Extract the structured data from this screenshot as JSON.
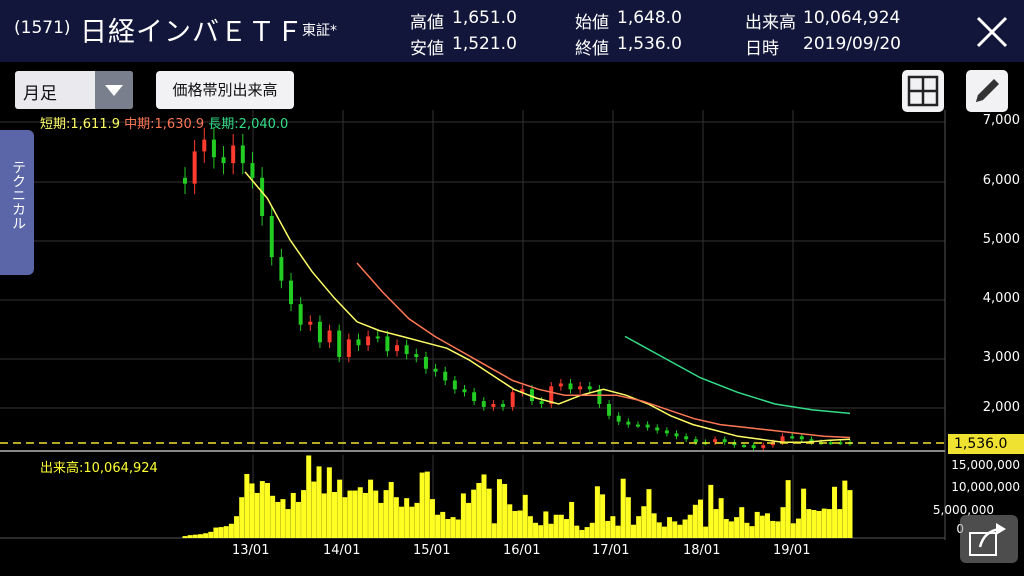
{
  "header": {
    "code": "(1571)",
    "name": "日経インバＥＴＦ",
    "market": "東証*",
    "stats": [
      {
        "label": "高値",
        "value": "1,651.0"
      },
      {
        "label": "始値",
        "value": "1,648.0"
      },
      {
        "label": "出来高",
        "value": "10,064,924"
      },
      {
        "label": "安値",
        "value": "1,521.0"
      },
      {
        "label": "終値",
        "value": "1,536.0"
      },
      {
        "label": "日時",
        "value": "2019/09/20"
      }
    ]
  },
  "toolbar": {
    "period_select": "月足",
    "volume_by_price_button": "価格帯別出来高"
  },
  "side_tab": "テクニカル",
  "legend": {
    "short": "短期:1,611.9",
    "mid": "中期:1,630.9",
    "long": "長期:2,040.0"
  },
  "volume_label": "出来高:10,064,924",
  "current_price_tag": "1,536.0",
  "colors": {
    "up": "#ff3b30",
    "down": "#22cc22",
    "short_ma": "#ffff66",
    "mid_ma": "#ff7755",
    "long_ma": "#33dd88",
    "volume": "#ffff22",
    "header_bg": "#12163a"
  },
  "chart_data": {
    "type": "candlestick",
    "price_axis": {
      "ticks": [
        "7,000",
        "6,000",
        "5,000",
        "4,000",
        "3,000",
        "2,000"
      ],
      "range": [
        1400,
        7000
      ]
    },
    "volume_axis": {
      "ticks": [
        "15,000,000",
        "10,000,000",
        "5,000,000",
        "0"
      ],
      "range": [
        0,
        17000000
      ]
    },
    "x_ticks": [
      "13/01",
      "14/01",
      "15/01",
      "16/01",
      "17/01",
      "18/01",
      "19/01"
    ],
    "candles_close": [
      5950,
      6500,
      6700,
      6400,
      6300,
      6600,
      6300,
      6050,
      5400,
      4700,
      4300,
      3900,
      3550,
      3600,
      3250,
      3450,
      3000,
      3300,
      3200,
      3350,
      3350,
      3100,
      3200,
      3050,
      3000,
      2800,
      2750,
      2600,
      2450,
      2400,
      2250,
      2150,
      2200,
      2150,
      2400,
      2450,
      2250,
      2200,
      2500,
      2550,
      2450,
      2500,
      2450,
      2200,
      2000,
      1900,
      1850,
      1850,
      1800,
      1750,
      1700,
      1650,
      1600,
      1550,
      1550,
      1600,
      1550,
      1500,
      1500,
      1450,
      1500,
      1550,
      1650,
      1650,
      1600,
      1550,
      1550,
      1550,
      1550,
      1536
    ],
    "short_ma": [
      6150,
      5700,
      5000,
      4450,
      4000,
      3600,
      3450,
      3350,
      3250,
      3150,
      2950,
      2700,
      2450,
      2300,
      2200,
      2350,
      2450,
      2350,
      2200,
      2000,
      1850,
      1750,
      1650,
      1600,
      1550,
      1550,
      1580,
      1600
    ],
    "mid_ma": [
      4600,
      4100,
      3650,
      3350,
      3100,
      2850,
      2600,
      2450,
      2350,
      2350,
      2350,
      2250,
      2100,
      1950,
      1850,
      1800,
      1750,
      1700,
      1650,
      1630
    ],
    "long_ma": [
      3350,
      3000,
      2650,
      2400,
      2200,
      2100,
      2040
    ],
    "volume": [
      0.4,
      0.6,
      0.7,
      0.8,
      1.0,
      1.3,
      2.2,
      2.3,
      2.5,
      3.0,
      4.6,
      8.6,
      13.5,
      11.5,
      9.5,
      12.0,
      11.6,
      8.9,
      7.6,
      8.2,
      6.1,
      9.5,
      7.6,
      10.1,
      17.4,
      11.9,
      15.1,
      9.4,
      14.9,
      9.7,
      12.3,
      8.6,
      10.0,
      10.0,
      10.7,
      9.5,
      12.3,
      10.0,
      7.4,
      10.1,
      11.8,
      8.6,
      6.6,
      8.4,
      6.6,
      7.4,
      13.8,
      14.0,
      8.2,
      4.9,
      5.5,
      4.0,
      4.4,
      3.9,
      9.4,
      7.4,
      10.2,
      11.6,
      13.4,
      10.4,
      3.1,
      12.4,
      11.4,
      7.1,
      5.7,
      5.8,
      9.1,
      4.6,
      3.2,
      2.7,
      5.6,
      3.0,
      4.9,
      4.9,
      4.0,
      7.6,
      2.6,
      1.7,
      2.3,
      3.2,
      10.9,
      9.2,
      3.6,
      4.6,
      2.6,
      12.5,
      8.6,
      2.8,
      4.6,
      6.7,
      10.3,
      5.2,
      3.3,
      2.4,
      4.4,
      3.5,
      2.8,
      3.9,
      4.9,
      7.0,
      8.1,
      2.4,
      11.2,
      6.1,
      8.4,
      4.0,
      3.5,
      4.4,
      6.5,
      3.2,
      2.5,
      5.5,
      4.7,
      5.2,
      3.6,
      3.5,
      6.5,
      12.2,
      3.1,
      4.1,
      10.4,
      6.1,
      5.9,
      5.7,
      6.2,
      6.1,
      10.8,
      6.1,
      12.1,
      10.1
    ]
  }
}
